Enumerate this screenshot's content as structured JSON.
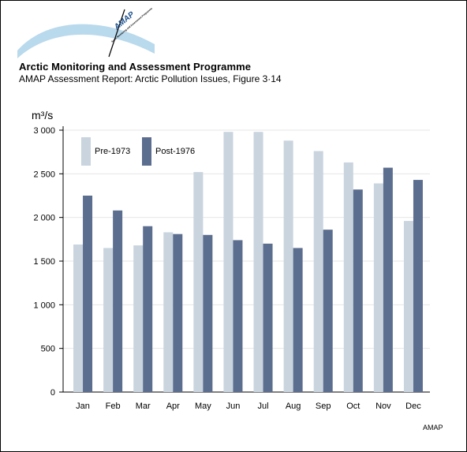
{
  "header": {
    "logo_text": "AMAP",
    "logo_subtext": "Arctic Monitoring and Assessment Programme",
    "org_title": "Arctic Monitoring and Assessment Programme",
    "report_title": "AMAP Assessment Report: Arctic Pollution Issues, Figure 3·14"
  },
  "footer": {
    "credit": "AMAP"
  },
  "colors": {
    "pre": "#c9d4de",
    "post": "#5c6e8f",
    "grid": "#e6e6e6",
    "logo_arc": "#b9d9ec"
  },
  "chart_data": {
    "type": "bar",
    "ylabel": "m³/s",
    "ylim": [
      0,
      3000
    ],
    "yticks": [
      0,
      500,
      1000,
      1500,
      2000,
      2500,
      3000
    ],
    "ytick_labels": [
      "0",
      "500",
      "1 000",
      "1 500",
      "2 000",
      "2 500",
      "3 000"
    ],
    "categories": [
      "Jan",
      "Feb",
      "Mar",
      "Apr",
      "May",
      "Jun",
      "Jul",
      "Aug",
      "Sep",
      "Oct",
      "Nov",
      "Dec"
    ],
    "series": [
      {
        "name": "Pre-1973",
        "color": "#c9d4de",
        "values": [
          1690,
          1650,
          1680,
          1830,
          2520,
          2980,
          2980,
          2880,
          2760,
          2630,
          2390,
          1960
        ]
      },
      {
        "name": "Post-1976",
        "color": "#5c6e8f",
        "values": [
          2250,
          2080,
          1900,
          1810,
          1800,
          1740,
          1700,
          1650,
          1860,
          2320,
          2570,
          2430
        ]
      }
    ],
    "grid": true,
    "legend_position": "top-left"
  }
}
